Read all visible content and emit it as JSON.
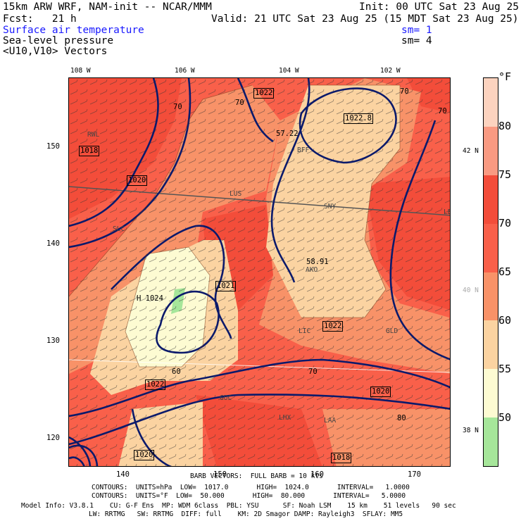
{
  "header": {
    "model": "15km ARW WRF, NAM-init -- NCAR/MMM",
    "init": "Init: 00 UTC Sat 23 Aug 25",
    "fcst": "Fcst:   21 h",
    "valid": "Valid: 21 UTC Sat 23 Aug 25 (15 MDT Sat 23 Aug 25)",
    "field1": "Surface air temperature",
    "sm1": "sm= 1",
    "field2": "Sea-level pressure",
    "sm2": "sm= 4",
    "field3": "<U10,V10> Vectors"
  },
  "top_longitudes": [
    "108 W",
    "106 W",
    "104 W",
    "102 W"
  ],
  "left_grid": [
    "150",
    "140",
    "130",
    "120"
  ],
  "bottom_grid": [
    "140",
    "150",
    "160",
    "170"
  ],
  "right_latitudes": [
    "42 N",
    "40 N",
    "38 N"
  ],
  "colorbar": {
    "unit": "°F",
    "levels": [
      "80",
      "75",
      "70",
      "65",
      "60",
      "55",
      "50"
    ],
    "colors": [
      "#fcd3bf",
      "#f99a82",
      "#f34d3a",
      "#f9604a",
      "#f89268",
      "#fbd3a1",
      "#fdfbd2",
      "#a6e69a"
    ]
  },
  "pressure_labels": [
    "1022",
    "1018",
    "1020",
    "1022",
    "1022",
    "1020",
    "1018",
    "1020",
    "1021",
    "1024"
  ],
  "highs": [
    "H 1024",
    "H 1022.8"
  ],
  "temp_labels": [
    "70",
    "70",
    "70",
    "70",
    "60",
    "70",
    "80"
  ],
  "point_values": [
    "57.22",
    "58.91",
    "1022.8",
    "1021",
    "1018"
  ],
  "stations": [
    "RWL",
    "BFF",
    "LUS",
    "SNY",
    "LBF",
    "AKO",
    "GLD",
    "LIC",
    "GUC",
    "LHX",
    "LAA",
    "SLC"
  ],
  "footer": {
    "barb": "BARB VECTORS:  FULL BARB = 10 kts",
    "contours1": "CONTOURS:  UNITS=hPa  LOW=  1017.0       HIGH=  1024.0       INTERVAL=   1.0000",
    "contours2": "CONTOURS:  UNITS=°F  LOW=  50.000       HIGH=  80.000       INTERVAL=   5.0000",
    "info1": "Model Info: V3.8.1    CU: G-F Ens  MP: WDM 6class  PBL: YSU      SF: Noah LSM    15 km    51 levels   90 sec",
    "info2": "LW: RRTMG   SW: RRTMG  DIFF: full    KM: 2D Smagor DAMP: Rayleigh3  SFLAY: MM5"
  }
}
